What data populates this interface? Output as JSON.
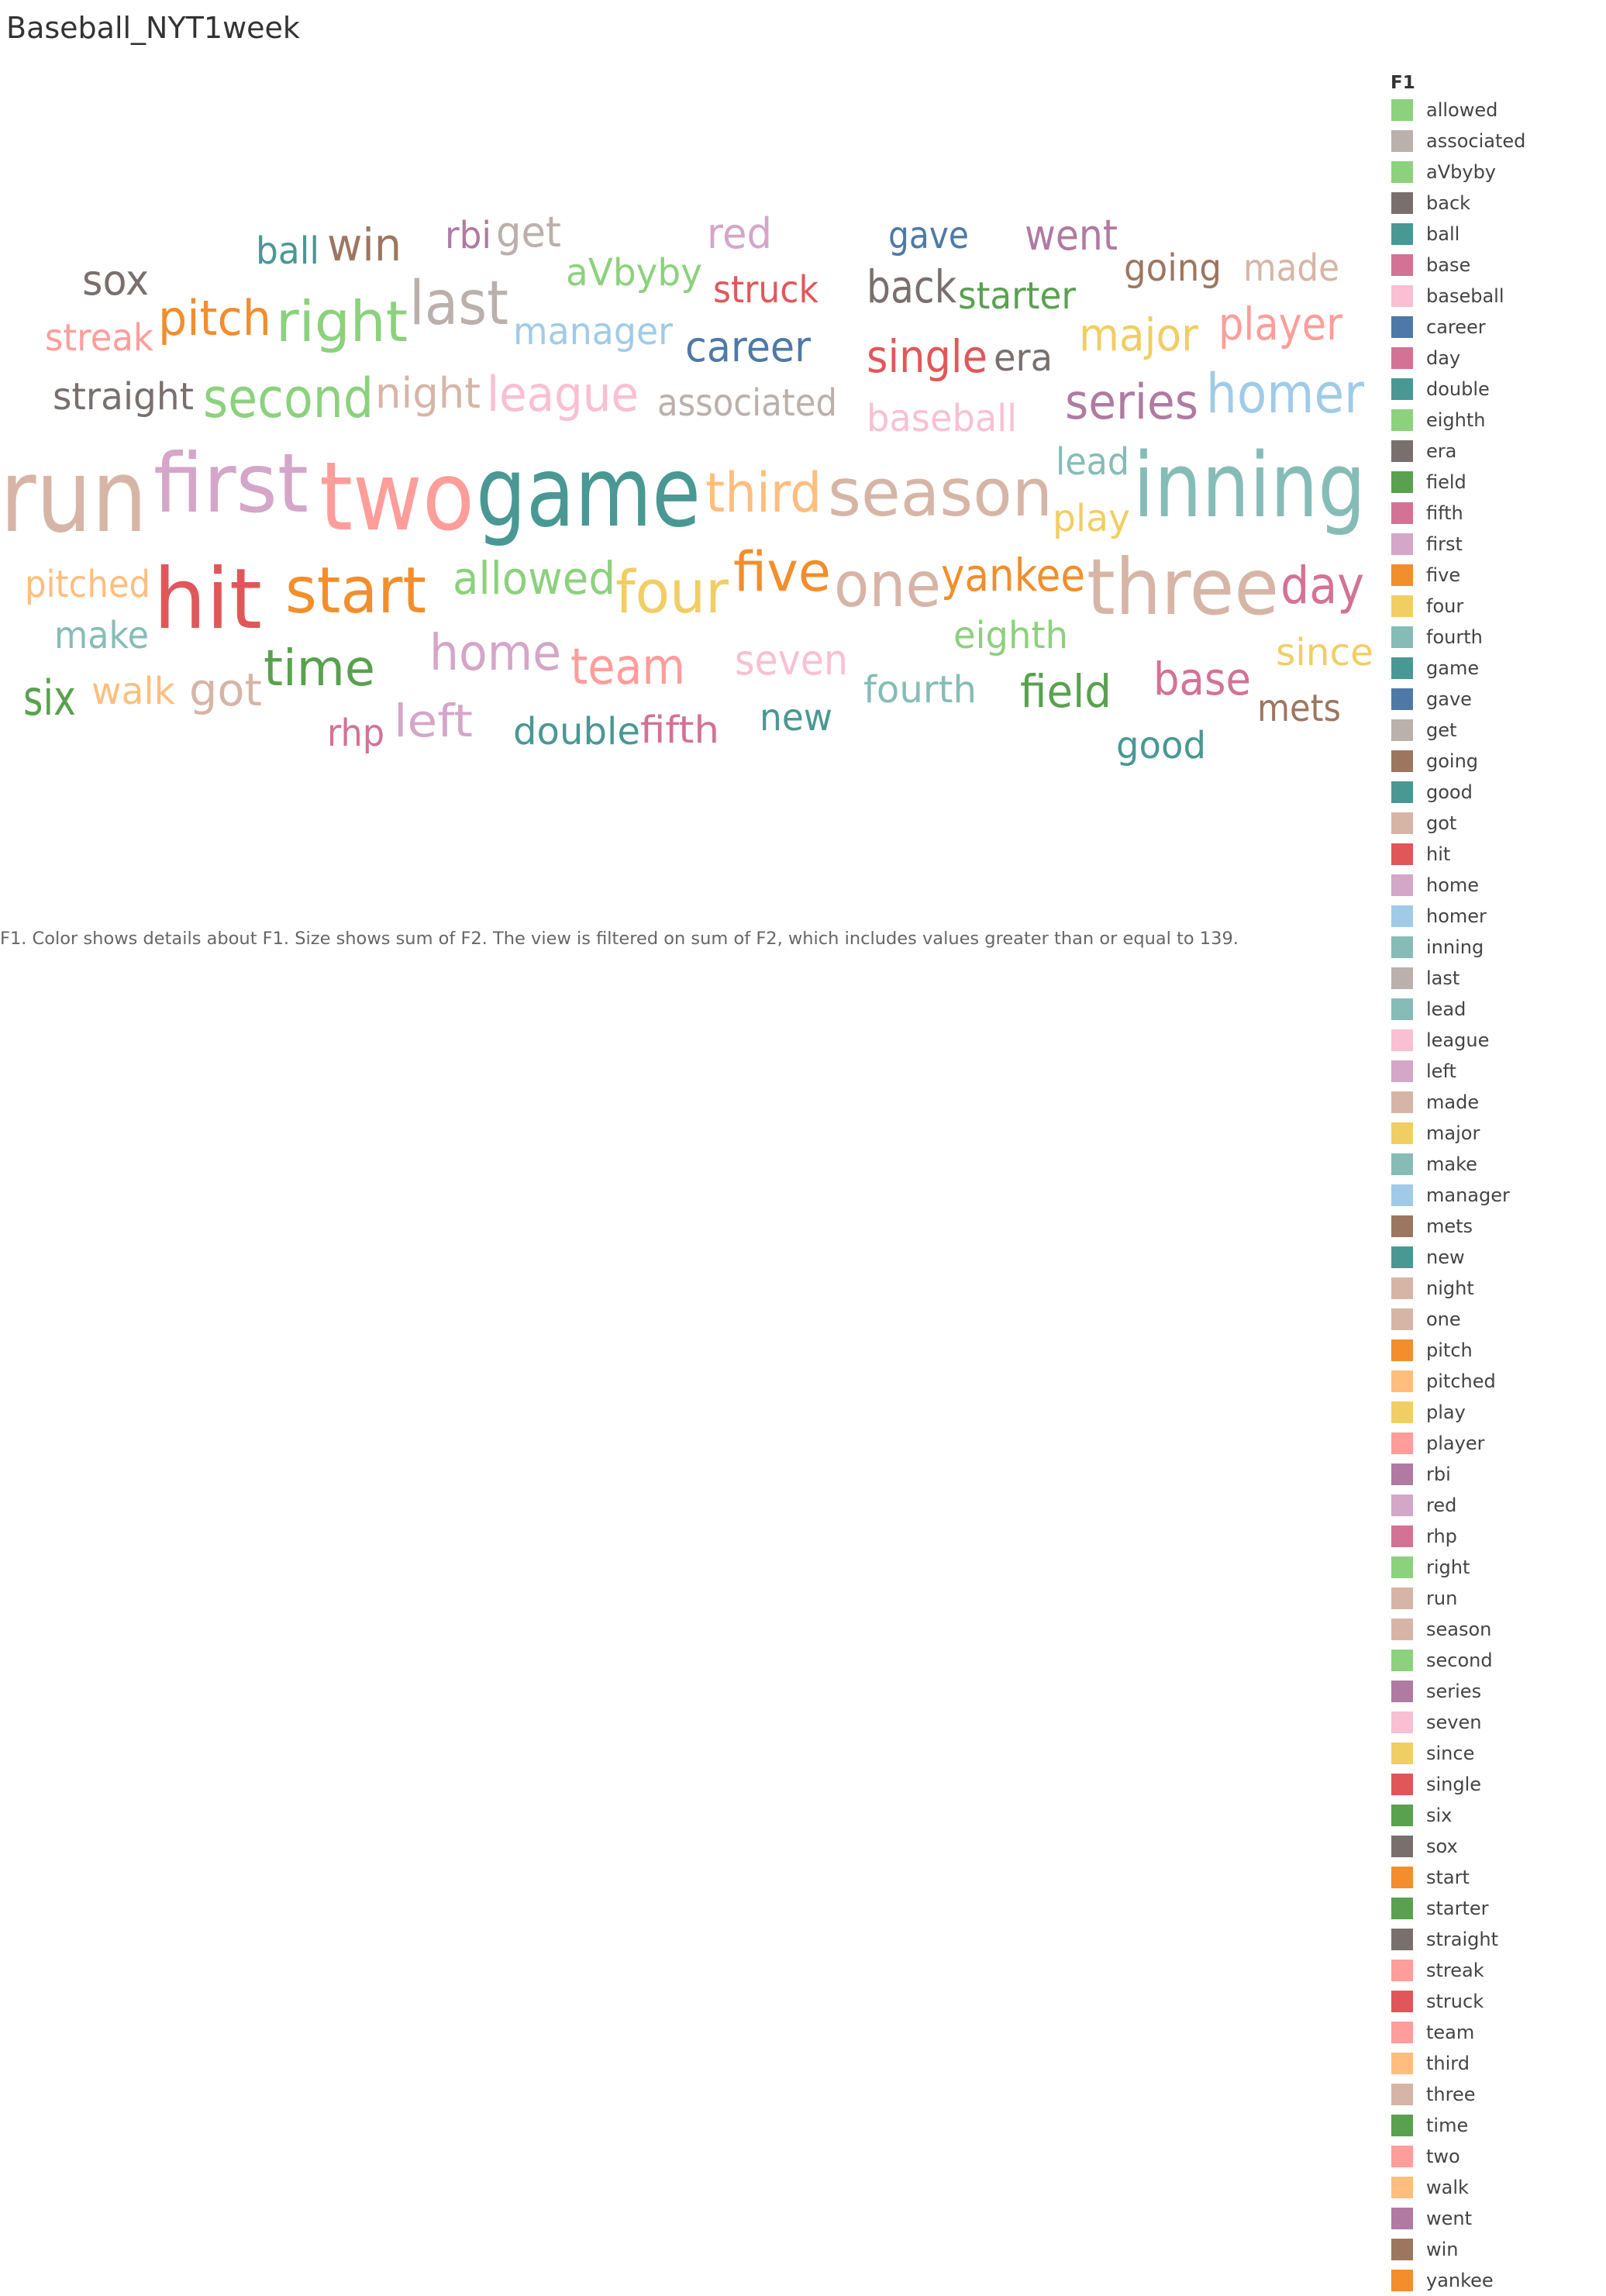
{
  "title": "Baseball_NYT1week",
  "caption": "F1.  Color shows details about F1.  Size shows sum of F2. The view is filtered on sum of F2, which includes values greater than or equal to 139.",
  "legend": {
    "title": "F1",
    "items": [
      {
        "label": "allowed",
        "color": "#8cd17d"
      },
      {
        "label": "associated",
        "color": "#bab0ac"
      },
      {
        "label": "aVbyby",
        "color": "#8cd17d"
      },
      {
        "label": "back",
        "color": "#79706e"
      },
      {
        "label": "ball",
        "color": "#499894"
      },
      {
        "label": "base",
        "color": "#d37295"
      },
      {
        "label": "baseball",
        "color": "#fabfd2"
      },
      {
        "label": "career",
        "color": "#4e79a7"
      },
      {
        "label": "day",
        "color": "#d37295"
      },
      {
        "label": "double",
        "color": "#499894"
      },
      {
        "label": "eighth",
        "color": "#8cd17d"
      },
      {
        "label": "era",
        "color": "#79706e"
      },
      {
        "label": "field",
        "color": "#59a14f"
      },
      {
        "label": "fifth",
        "color": "#d37295"
      },
      {
        "label": "first",
        "color": "#d4a6c8"
      },
      {
        "label": "five",
        "color": "#f28e2b"
      },
      {
        "label": "four",
        "color": "#f1ce63"
      },
      {
        "label": "fourth",
        "color": "#86bcb6"
      },
      {
        "label": "game",
        "color": "#499894"
      },
      {
        "label": "gave",
        "color": "#4e79a7"
      },
      {
        "label": "get",
        "color": "#bab0ac"
      },
      {
        "label": "going",
        "color": "#9d7660"
      },
      {
        "label": "good",
        "color": "#499894"
      },
      {
        "label": "got",
        "color": "#d7b5a6"
      },
      {
        "label": "hit",
        "color": "#e15759"
      },
      {
        "label": "home",
        "color": "#d4a6c8"
      },
      {
        "label": "homer",
        "color": "#a0cbe8"
      },
      {
        "label": "inning",
        "color": "#86bcb6"
      },
      {
        "label": "last",
        "color": "#bab0ac"
      },
      {
        "label": "lead",
        "color": "#86bcb6"
      },
      {
        "label": "league",
        "color": "#fabfd2"
      },
      {
        "label": "left",
        "color": "#d4a6c8"
      },
      {
        "label": "made",
        "color": "#d7b5a6"
      },
      {
        "label": "major",
        "color": "#f1ce63"
      },
      {
        "label": "make",
        "color": "#86bcb6"
      },
      {
        "label": "manager",
        "color": "#a0cbe8"
      },
      {
        "label": "mets",
        "color": "#9d7660"
      },
      {
        "label": "new",
        "color": "#499894"
      },
      {
        "label": "night",
        "color": "#d7b5a6"
      },
      {
        "label": "one",
        "color": "#d7b5a6"
      },
      {
        "label": "pitch",
        "color": "#f28e2b"
      },
      {
        "label": "pitched",
        "color": "#ffbe7d"
      },
      {
        "label": "play",
        "color": "#f1ce63"
      },
      {
        "label": "player",
        "color": "#ff9d9a"
      },
      {
        "label": "rbi",
        "color": "#b07aa1"
      },
      {
        "label": "red",
        "color": "#d4a6c8"
      },
      {
        "label": "rhp",
        "color": "#d37295"
      },
      {
        "label": "right",
        "color": "#8cd17d"
      },
      {
        "label": "run",
        "color": "#d7b5a6"
      },
      {
        "label": "season",
        "color": "#d7b5a6"
      },
      {
        "label": "second",
        "color": "#8cd17d"
      },
      {
        "label": "series",
        "color": "#b07aa1"
      },
      {
        "label": "seven",
        "color": "#fabfd2"
      },
      {
        "label": "since",
        "color": "#f1ce63"
      },
      {
        "label": "single",
        "color": "#e15759"
      },
      {
        "label": "six",
        "color": "#59a14f"
      },
      {
        "label": "sox",
        "color": "#79706e"
      },
      {
        "label": "start",
        "color": "#f28e2b"
      },
      {
        "label": "starter",
        "color": "#59a14f"
      },
      {
        "label": "straight",
        "color": "#79706e"
      },
      {
        "label": "streak",
        "color": "#ff9d9a"
      },
      {
        "label": "struck",
        "color": "#e15759"
      },
      {
        "label": "team",
        "color": "#ff9d9a"
      },
      {
        "label": "third",
        "color": "#ffbe7d"
      },
      {
        "label": "three",
        "color": "#d7b5a6"
      },
      {
        "label": "time",
        "color": "#59a14f"
      },
      {
        "label": "two",
        "color": "#ff9d9a"
      },
      {
        "label": "walk",
        "color": "#ffbe7d"
      },
      {
        "label": "went",
        "color": "#b07aa1"
      },
      {
        "label": "win",
        "color": "#9d7660"
      },
      {
        "label": "yankee",
        "color": "#f28e2b"
      }
    ]
  },
  "chart_data": {
    "type": "wordcloud",
    "encoding": {
      "color": "F1",
      "size": "sum of F2"
    },
    "filter": "sum of F2 >= 139",
    "words": [
      {
        "text": "run",
        "color": "#d7b5a6"
      },
      {
        "text": "first",
        "color": "#d4a6c8"
      },
      {
        "text": "two",
        "color": "#ff9d9a"
      },
      {
        "text": "game",
        "color": "#499894"
      },
      {
        "text": "third",
        "color": "#ffbe7d"
      },
      {
        "text": "season",
        "color": "#d7b5a6"
      },
      {
        "text": "inning",
        "color": "#86bcb6"
      },
      {
        "text": "lead",
        "color": "#86bcb6"
      },
      {
        "text": "play",
        "color": "#f1ce63"
      },
      {
        "text": "three",
        "color": "#d7b5a6"
      },
      {
        "text": "hit",
        "color": "#e15759"
      },
      {
        "text": "start",
        "color": "#f28e2b"
      },
      {
        "text": "pitched",
        "color": "#ffbe7d"
      },
      {
        "text": "allowed",
        "color": "#8cd17d"
      },
      {
        "text": "four",
        "color": "#f1ce63"
      },
      {
        "text": "five",
        "color": "#f28e2b"
      },
      {
        "text": "one",
        "color": "#d7b5a6"
      },
      {
        "text": "yankee",
        "color": "#f28e2b"
      },
      {
        "text": "day",
        "color": "#d37295"
      },
      {
        "text": "make",
        "color": "#86bcb6"
      },
      {
        "text": "eighth",
        "color": "#8cd17d"
      },
      {
        "text": "since",
        "color": "#f1ce63"
      },
      {
        "text": "six",
        "color": "#59a14f"
      },
      {
        "text": "walk",
        "color": "#ffbe7d"
      },
      {
        "text": "got",
        "color": "#d7b5a6"
      },
      {
        "text": "time",
        "color": "#59a14f"
      },
      {
        "text": "home",
        "color": "#d4a6c8"
      },
      {
        "text": "team",
        "color": "#ff9d9a"
      },
      {
        "text": "seven",
        "color": "#fabfd2"
      },
      {
        "text": "fourth",
        "color": "#86bcb6"
      },
      {
        "text": "field",
        "color": "#59a14f"
      },
      {
        "text": "base",
        "color": "#d37295"
      },
      {
        "text": "mets",
        "color": "#9d7660"
      },
      {
        "text": "rhp",
        "color": "#d37295"
      },
      {
        "text": "left",
        "color": "#d4a6c8"
      },
      {
        "text": "double",
        "color": "#499894"
      },
      {
        "text": "fifth",
        "color": "#d37295"
      },
      {
        "text": "new",
        "color": "#499894"
      },
      {
        "text": "good",
        "color": "#499894"
      },
      {
        "text": "ball",
        "color": "#499894"
      },
      {
        "text": "win",
        "color": "#9d7660"
      },
      {
        "text": "rbi",
        "color": "#b07aa1"
      },
      {
        "text": "get",
        "color": "#bab0ac"
      },
      {
        "text": "red",
        "color": "#d4a6c8"
      },
      {
        "text": "gave",
        "color": "#4e79a7"
      },
      {
        "text": "went",
        "color": "#b07aa1"
      },
      {
        "text": "sox",
        "color": "#79706e"
      },
      {
        "text": "aVbyby",
        "color": "#8cd17d"
      },
      {
        "text": "struck",
        "color": "#e15759"
      },
      {
        "text": "back",
        "color": "#79706e"
      },
      {
        "text": "starter",
        "color": "#59a14f"
      },
      {
        "text": "going",
        "color": "#9d7660"
      },
      {
        "text": "made",
        "color": "#d7b5a6"
      },
      {
        "text": "streak",
        "color": "#ff9d9a"
      },
      {
        "text": "pitch",
        "color": "#f28e2b"
      },
      {
        "text": "right",
        "color": "#8cd17d"
      },
      {
        "text": "last",
        "color": "#bab0ac"
      },
      {
        "text": "manager",
        "color": "#a0cbe8"
      },
      {
        "text": "career",
        "color": "#4e79a7"
      },
      {
        "text": "major",
        "color": "#f1ce63"
      },
      {
        "text": "player",
        "color": "#ff9d9a"
      },
      {
        "text": "straight",
        "color": "#79706e"
      },
      {
        "text": "second",
        "color": "#8cd17d"
      },
      {
        "text": "night",
        "color": "#d7b5a6"
      },
      {
        "text": "league",
        "color": "#fabfd2"
      },
      {
        "text": "associated",
        "color": "#bab0ac"
      },
      {
        "text": "single",
        "color": "#e15759"
      },
      {
        "text": "era",
        "color": "#79706e"
      },
      {
        "text": "baseball",
        "color": "#fabfd2"
      },
      {
        "text": "series",
        "color": "#b07aa1"
      },
      {
        "text": "homer",
        "color": "#a0cbe8"
      }
    ]
  }
}
